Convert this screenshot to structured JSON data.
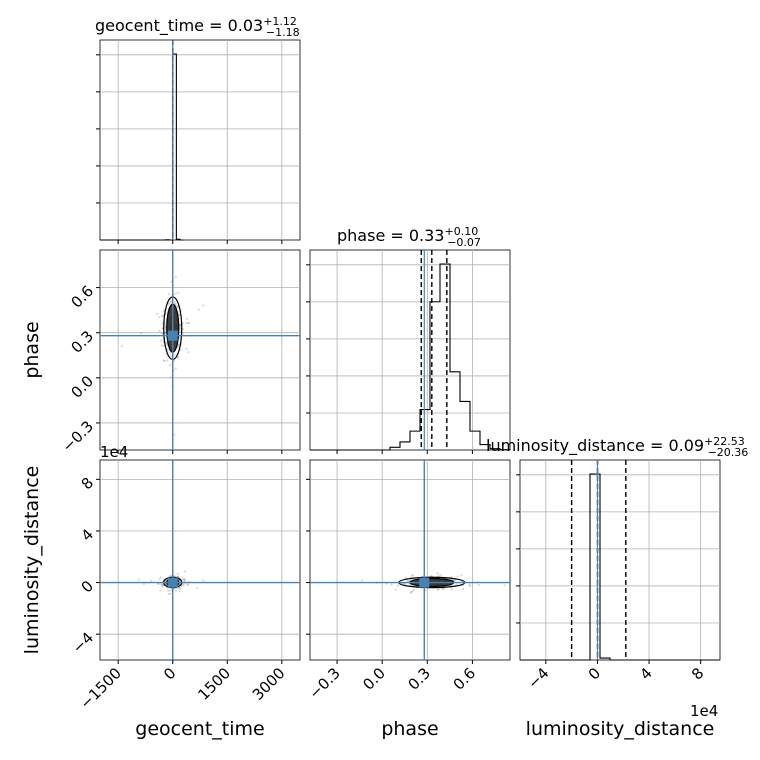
{
  "chart_data": {
    "type": "corner",
    "parameters": [
      "geocent_time",
      "phase",
      "luminosity_distance"
    ],
    "truth": {
      "geocent_time": 0,
      "phase": 0.28,
      "luminosity_distance": 0
    },
    "titles": [
      {
        "name": "geocent_time",
        "median": "0.03",
        "plus": "+1.12",
        "minus": "−1.18"
      },
      {
        "name": "phase",
        "median": "0.33",
        "plus": "+0.10",
        "minus": "−0.07"
      },
      {
        "name": "luminosity_distance",
        "median": "0.09",
        "plus": "+22.53",
        "minus": "−20.36"
      }
    ],
    "ranges": {
      "geocent_time": [
        -2000,
        3500
      ],
      "phase": [
        -0.48,
        0.85
      ],
      "luminosity_distance": [
        -60000,
        95000
      ]
    },
    "ticks": {
      "geocent_time": {
        "values": [
          -1500,
          0,
          1500,
          3000
        ],
        "labels": [
          "−1500",
          "0",
          "1500",
          "3000"
        ]
      },
      "phase": {
        "values": [
          -0.3,
          0.0,
          0.3,
          0.6
        ],
        "labels": [
          "−0.3",
          "0.0",
          "0.3",
          "0.6"
        ]
      },
      "luminosity_distance": {
        "values": [
          -40000,
          0,
          40000,
          80000
        ],
        "labels": [
          "−4",
          "0",
          "4",
          "8"
        ]
      }
    },
    "offset_label": "1e4",
    "quantiles": {
      "geocent_time": [
        -1.15,
        0.03,
        1.15
      ],
      "phase": [
        0.26,
        0.33,
        0.43
      ],
      "luminosity_distance": [
        -20000,
        90,
        22000
      ]
    },
    "histograms": {
      "geocent_time": {
        "edges": [
          -2000,
          0
        ],
        "bin_width": 100,
        "counts": [
          0,
          0,
          0,
          0,
          0,
          0,
          0,
          0,
          0,
          0,
          0,
          0,
          0,
          0,
          0,
          0,
          0,
          0,
          1,
          0,
          1000,
          4,
          0
        ]
      },
      "phase": {
        "start": -0.48,
        "bin_width": 0.0665,
        "counts": [
          0,
          0,
          0,
          0,
          0,
          0,
          0,
          0,
          0.01,
          0.03,
          0.07,
          0.15,
          0.55,
          0.69,
          0.29,
          0.18,
          0.07,
          0.02,
          0.005,
          0.001
        ]
      },
      "luminosity_distance": {
        "start": -60000,
        "bin_width": 7750,
        "counts": [
          0,
          0,
          0,
          0,
          0,
          0,
          0,
          0.97,
          0.01,
          0,
          0,
          0,
          0,
          0,
          0,
          0,
          0,
          0,
          0,
          0
        ]
      }
    },
    "grid": true
  }
}
